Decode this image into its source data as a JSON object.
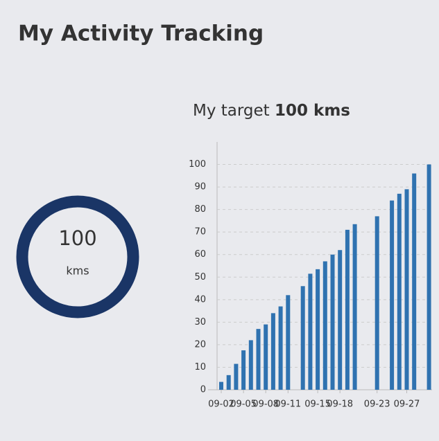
{
  "header": {
    "title": "My Activity Tracking"
  },
  "ring": {
    "value": 100,
    "unit": "kms"
  },
  "chart_data": {
    "type": "bar",
    "title": "My target",
    "title_emphasis": "100 kms",
    "categories": [
      "09-02",
      null,
      null,
      "09-05",
      null,
      null,
      "09-08",
      null,
      null,
      "09-11",
      null,
      null,
      null,
      "09-15",
      null,
      null,
      "09-18",
      null,
      null,
      null,
      null,
      "09-23",
      null,
      null,
      null,
      "09-27",
      null,
      null,
      null
    ],
    "values": [
      3.5,
      6.5,
      11.5,
      17.5,
      22,
      27,
      29,
      34,
      37,
      42,
      null,
      46,
      51.5,
      53.5,
      57,
      60,
      62,
      71,
      73.5,
      null,
      null,
      77,
      null,
      84,
      87,
      89,
      96,
      null,
      100
    ],
    "color": "#2f72b0",
    "ylim": [
      0,
      110
    ],
    "yticks": [
      0,
      10,
      20,
      30,
      40,
      50,
      60,
      70,
      80,
      90,
      100
    ],
    "grid": true
  }
}
